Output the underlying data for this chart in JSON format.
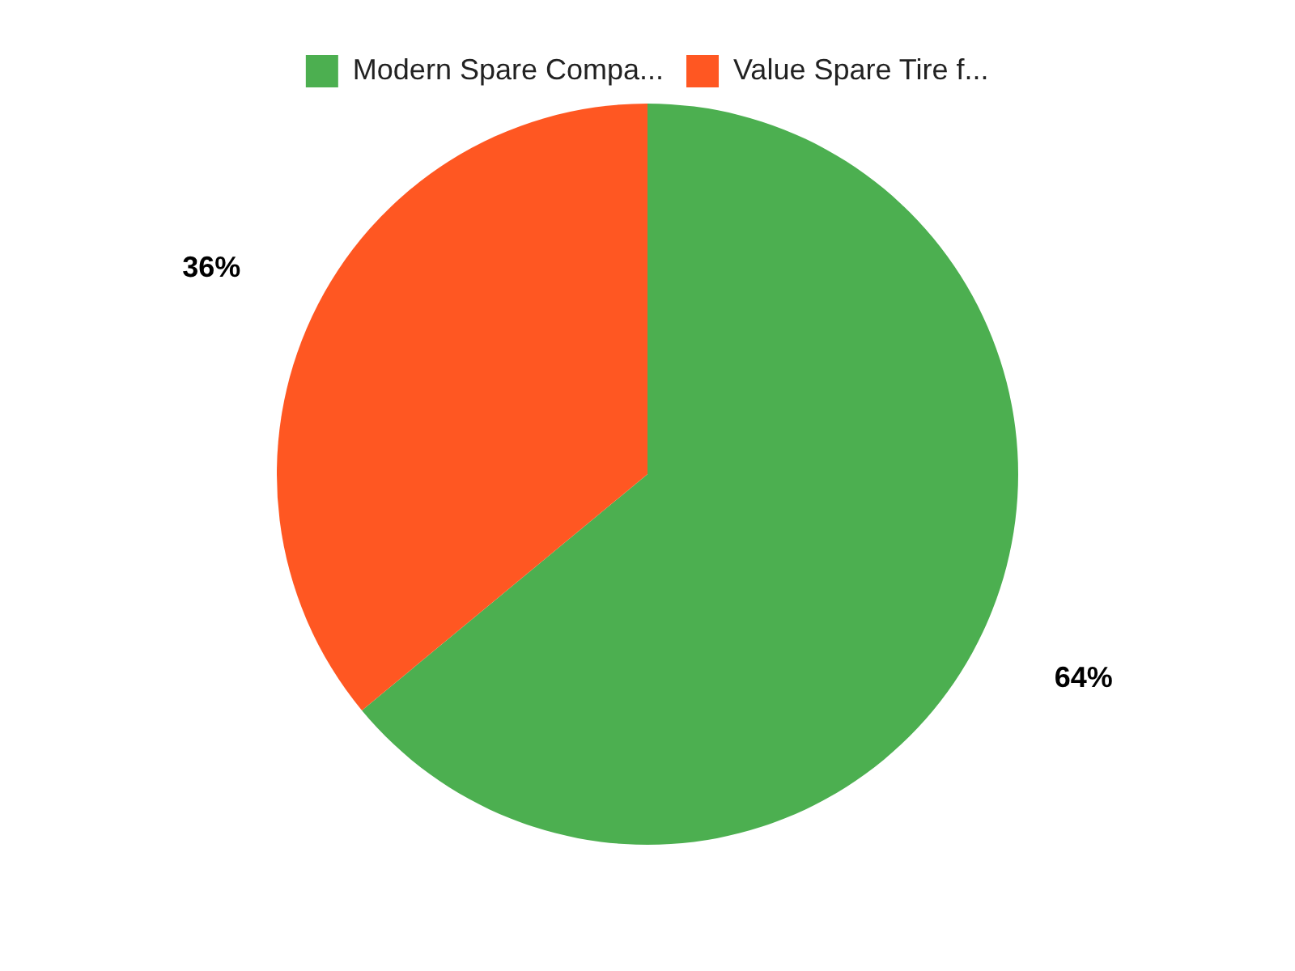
{
  "chart_data": {
    "type": "pie",
    "categories": [
      "Modern Spare Compa...",
      "Value Spare Tire f..."
    ],
    "values": [
      64,
      36
    ],
    "colors": [
      "#4caf50",
      "#ff5722"
    ],
    "value_labels": [
      "64%",
      "36%"
    ],
    "legend": "top"
  }
}
